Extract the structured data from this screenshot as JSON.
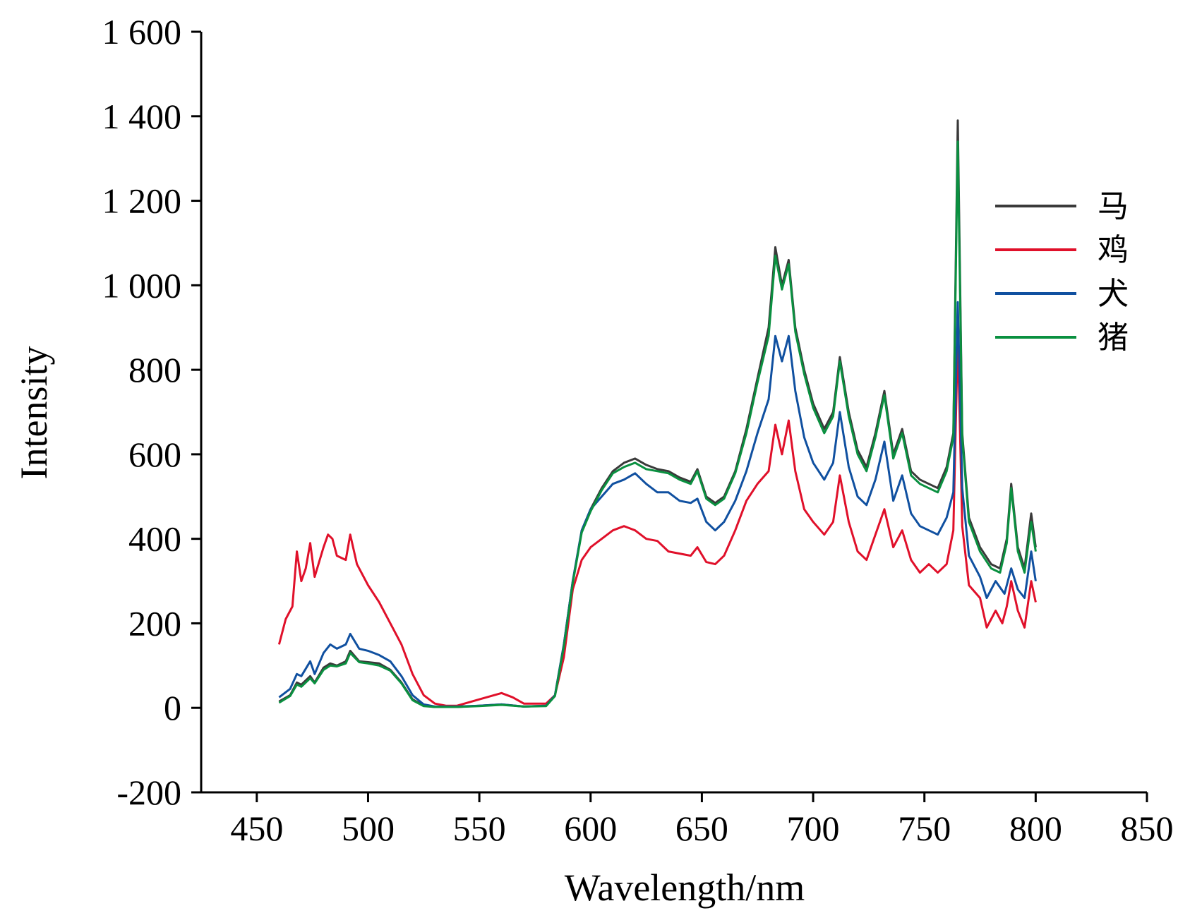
{
  "chart_data": {
    "type": "line",
    "xlabel": "Wavelength/nm",
    "ylabel": "Intensity",
    "xlim": [
      425,
      850
    ],
    "ylim": [
      -200,
      1600
    ],
    "xticks": [
      "450",
      "500",
      "550",
      "600",
      "650",
      "700",
      "750",
      "800",
      "850"
    ],
    "yticks": [
      "-200",
      "0",
      "200",
      "400",
      "600",
      "800",
      "1 000",
      "1 200",
      "1 400",
      "1 600"
    ],
    "legend_position": "top-right",
    "grid": false,
    "series": [
      {
        "name": "马",
        "color": "#3a3a3a",
        "x": [
          460,
          465,
          468,
          470,
          474,
          476,
          480,
          483,
          486,
          490,
          492,
          496,
          500,
          505,
          510,
          515,
          520,
          525,
          530,
          540,
          550,
          560,
          570,
          580,
          584,
          588,
          592,
          596,
          600,
          605,
          610,
          615,
          620,
          625,
          630,
          635,
          640,
          645,
          648,
          652,
          656,
          660,
          665,
          670,
          675,
          680,
          683,
          686,
          689,
          692,
          696,
          700,
          705,
          709,
          712,
          716,
          720,
          724,
          728,
          732,
          736,
          740,
          744,
          748,
          752,
          756,
          760,
          763,
          765,
          767,
          770,
          775,
          780,
          784,
          787,
          789,
          792,
          795,
          798,
          800
        ],
        "y": [
          15,
          30,
          60,
          55,
          75,
          60,
          95,
          105,
          100,
          110,
          135,
          110,
          108,
          105,
          90,
          60,
          20,
          5,
          2,
          2,
          5,
          8,
          3,
          5,
          30,
          150,
          300,
          420,
          470,
          520,
          560,
          580,
          590,
          575,
          565,
          560,
          545,
          535,
          565,
          500,
          485,
          500,
          560,
          660,
          780,
          900,
          1090,
          1000,
          1060,
          900,
          800,
          720,
          660,
          700,
          830,
          700,
          610,
          570,
          650,
          750,
          600,
          660,
          560,
          540,
          530,
          520,
          570,
          650,
          1390,
          650,
          450,
          380,
          340,
          330,
          400,
          530,
          380,
          330,
          460,
          380
        ]
      },
      {
        "name": "鸡",
        "color": "#e0102a",
        "x": [
          460,
          463,
          466,
          468,
          470,
          472,
          474,
          476,
          480,
          482,
          484,
          486,
          490,
          492,
          495,
          500,
          505,
          510,
          515,
          520,
          525,
          530,
          535,
          540,
          550,
          560,
          565,
          570,
          580,
          584,
          588,
          592,
          596,
          600,
          605,
          610,
          615,
          620,
          625,
          630,
          635,
          640,
          645,
          648,
          652,
          656,
          660,
          665,
          670,
          675,
          680,
          683,
          686,
          689,
          692,
          696,
          700,
          705,
          709,
          712,
          716,
          720,
          724,
          728,
          732,
          736,
          740,
          744,
          748,
          752,
          756,
          760,
          763,
          765,
          767,
          770,
          775,
          778,
          782,
          785,
          787,
          789,
          792,
          795,
          798,
          800
        ],
        "y": [
          150,
          210,
          240,
          370,
          300,
          330,
          390,
          310,
          380,
          410,
          400,
          360,
          350,
          410,
          340,
          290,
          250,
          200,
          150,
          80,
          30,
          10,
          5,
          5,
          20,
          35,
          25,
          10,
          10,
          30,
          120,
          280,
          350,
          380,
          400,
          420,
          430,
          420,
          400,
          395,
          370,
          365,
          360,
          380,
          345,
          340,
          360,
          420,
          490,
          530,
          560,
          670,
          600,
          680,
          560,
          470,
          440,
          410,
          440,
          550,
          440,
          370,
          350,
          410,
          470,
          380,
          420,
          350,
          320,
          340,
          320,
          340,
          420,
          880,
          430,
          290,
          260,
          190,
          230,
          200,
          240,
          300,
          230,
          190,
          300,
          250
        ]
      },
      {
        "name": "犬",
        "color": "#1050a0",
        "x": [
          460,
          465,
          468,
          470,
          474,
          476,
          480,
          483,
          486,
          490,
          492,
          496,
          500,
          505,
          510,
          515,
          520,
          525,
          530,
          540,
          550,
          560,
          570,
          580,
          584,
          588,
          592,
          596,
          600,
          605,
          610,
          615,
          620,
          625,
          630,
          635,
          640,
          645,
          648,
          652,
          656,
          660,
          665,
          670,
          675,
          680,
          683,
          686,
          689,
          692,
          696,
          700,
          705,
          709,
          712,
          716,
          720,
          724,
          728,
          732,
          736,
          740,
          744,
          748,
          752,
          756,
          760,
          763,
          765,
          767,
          770,
          775,
          778,
          782,
          786,
          789,
          792,
          795,
          798,
          800
        ],
        "y": [
          25,
          45,
          80,
          75,
          110,
          80,
          130,
          150,
          140,
          150,
          175,
          140,
          135,
          125,
          110,
          75,
          30,
          8,
          3,
          3,
          5,
          8,
          3,
          5,
          30,
          150,
          300,
          420,
          470,
          500,
          530,
          540,
          555,
          530,
          510,
          510,
          490,
          485,
          495,
          440,
          420,
          440,
          490,
          560,
          650,
          730,
          880,
          820,
          880,
          750,
          640,
          580,
          540,
          580,
          700,
          570,
          500,
          480,
          540,
          630,
          490,
          550,
          460,
          430,
          420,
          410,
          450,
          510,
          960,
          520,
          360,
          310,
          260,
          300,
          270,
          330,
          280,
          260,
          370,
          300
        ]
      },
      {
        "name": "猪",
        "color": "#0a9040",
        "x": [
          460,
          465,
          468,
          470,
          474,
          476,
          480,
          483,
          486,
          490,
          492,
          496,
          500,
          505,
          510,
          515,
          520,
          525,
          530,
          540,
          550,
          560,
          570,
          580,
          584,
          588,
          592,
          596,
          600,
          605,
          610,
          615,
          620,
          625,
          630,
          635,
          640,
          645,
          648,
          652,
          656,
          660,
          665,
          670,
          675,
          680,
          683,
          686,
          689,
          692,
          696,
          700,
          705,
          709,
          712,
          716,
          720,
          724,
          728,
          732,
          736,
          740,
          744,
          748,
          752,
          756,
          760,
          763,
          765,
          767,
          770,
          775,
          780,
          784,
          787,
          789,
          792,
          795,
          798,
          800
        ],
        "y": [
          12,
          28,
          55,
          50,
          70,
          58,
          90,
          100,
          98,
          105,
          130,
          108,
          105,
          100,
          88,
          58,
          18,
          4,
          2,
          2,
          4,
          7,
          3,
          4,
          28,
          145,
          295,
          415,
          465,
          515,
          555,
          570,
          580,
          565,
          560,
          555,
          540,
          530,
          560,
          495,
          480,
          495,
          555,
          650,
          770,
          880,
          1070,
          990,
          1050,
          890,
          790,
          710,
          650,
          690,
          820,
          690,
          600,
          560,
          640,
          740,
          590,
          650,
          550,
          530,
          520,
          510,
          560,
          640,
          1340,
          640,
          440,
          370,
          330,
          320,
          390,
          520,
          370,
          320,
          440,
          370
        ]
      }
    ]
  }
}
